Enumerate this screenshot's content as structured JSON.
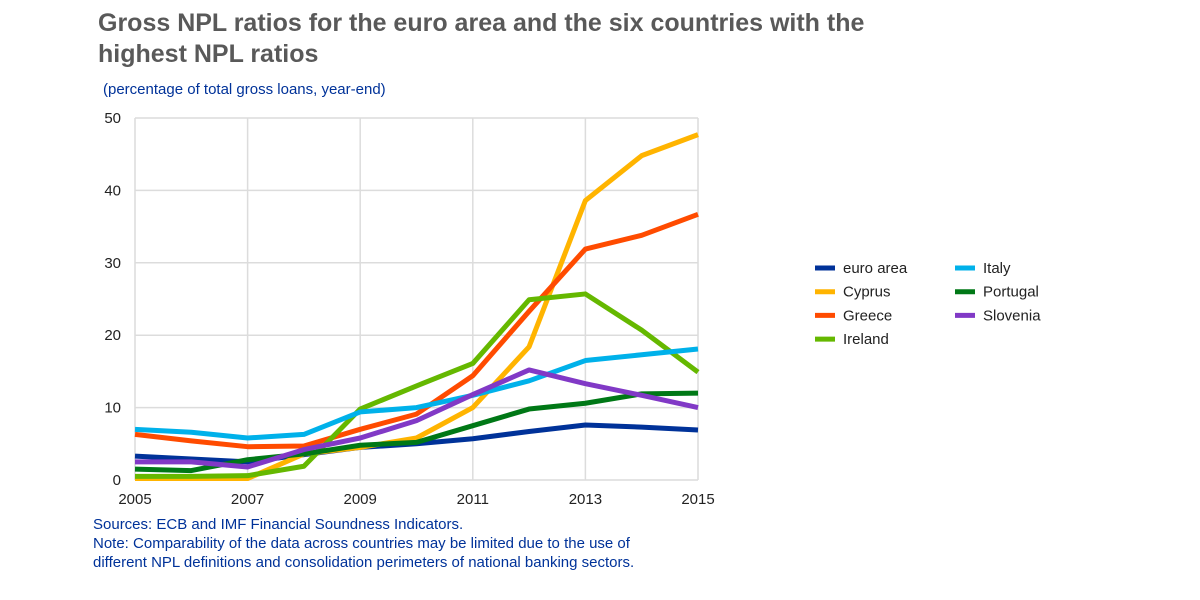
{
  "chart_data": {
    "type": "line",
    "title": "Gross NPL ratios for the euro area and the six countries with the highest NPL ratios",
    "subtitle": "(percentage of total gross loans, year-end)",
    "xlabel": "",
    "ylabel": "",
    "x": [
      2005,
      2006,
      2007,
      2008,
      2009,
      2010,
      2011,
      2012,
      2013,
      2014,
      2015
    ],
    "xticks": [
      "2005",
      "2007",
      "2009",
      "2011",
      "2013",
      "2015"
    ],
    "yticks": [
      "0",
      "10",
      "20",
      "30",
      "40",
      "50"
    ],
    "ylim": [
      0,
      50
    ],
    "xlim": [
      2005,
      2015
    ],
    "grid": true,
    "legend_position": "right",
    "series": [
      {
        "name": "euro area",
        "color": "#003299",
        "values": [
          3.3,
          2.9,
          2.5,
          3.5,
          4.5,
          5.0,
          5.7,
          6.7,
          7.6,
          7.3,
          6.9
        ]
      },
      {
        "name": "Cyprus",
        "color": "#ffb400",
        "values": [
          0.2,
          0.2,
          0.2,
          3.6,
          4.5,
          5.8,
          10.0,
          18.4,
          38.6,
          44.8,
          47.7
        ]
      },
      {
        "name": "Greece",
        "color": "#ff4b00",
        "values": [
          6.3,
          5.4,
          4.6,
          4.7,
          7.0,
          9.1,
          14.4,
          23.3,
          31.9,
          33.8,
          36.7
        ]
      },
      {
        "name": "Ireland",
        "color": "#65b800",
        "values": [
          0.5,
          0.5,
          0.6,
          1.9,
          9.8,
          13.0,
          16.1,
          24.9,
          25.7,
          20.7,
          14.9
        ]
      },
      {
        "name": "Italy",
        "color": "#00b1ea",
        "values": [
          7.0,
          6.6,
          5.8,
          6.3,
          9.4,
          10.0,
          11.7,
          13.7,
          16.5,
          17.3,
          18.1
        ]
      },
      {
        "name": "Portugal",
        "color": "#007816",
        "values": [
          1.5,
          1.3,
          2.8,
          3.6,
          4.8,
          5.2,
          7.5,
          9.8,
          10.6,
          11.9,
          12.0
        ]
      },
      {
        "name": "Slovenia",
        "color": "#8139c6",
        "values": [
          2.5,
          2.5,
          1.8,
          4.2,
          5.8,
          8.2,
          11.8,
          15.2,
          13.3,
          11.7,
          10.0
        ]
      }
    ]
  },
  "notes": {
    "sources": "Sources: ECB and IMF Financial Soundness Indicators.",
    "note1": "Note: Comparability of the data across countries may be limited due to the use of",
    "note2": "different NPL definitions and consolidation perimeters of national banking sectors."
  }
}
